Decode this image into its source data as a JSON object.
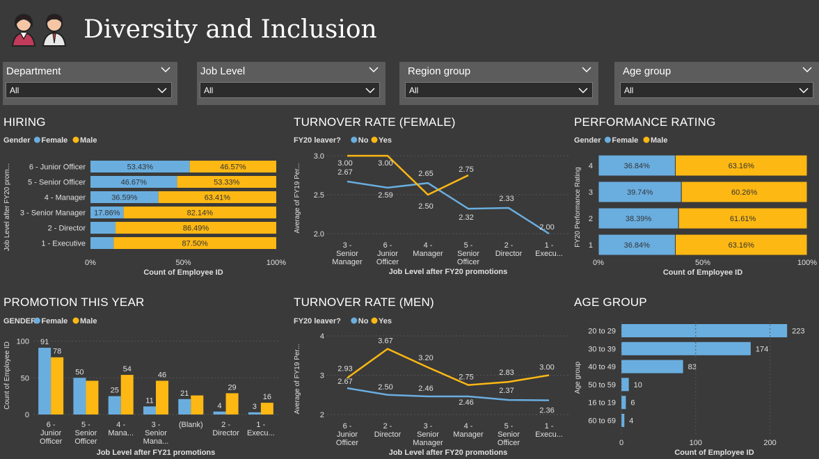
{
  "header": {
    "title": "Diversity and Inclusion"
  },
  "slicers": [
    {
      "label": "Department",
      "value": "All"
    },
    {
      "label": "Job Level",
      "value": "All"
    },
    {
      "label": "Region group",
      "value": "All"
    },
    {
      "label": "Age group",
      "value": "All"
    }
  ],
  "colors": {
    "female": "#6aaee0",
    "male": "#fdb813",
    "no": "#6aaee0",
    "yes": "#fdb813"
  },
  "chart_data": [
    {
      "id": "hiring",
      "type": "bar",
      "title": "HIRING",
      "legend_title": "Gender",
      "orientation": "horizontal-stacked-100",
      "categories": [
        "6 - Junior Officer",
        "5 - Senior Officer",
        "4 - Manager",
        "3 - Senior Manager",
        "2 - Director",
        "1 - Executive"
      ],
      "series": [
        {
          "name": "Female",
          "values": [
            53.43,
            46.67,
            36.59,
            17.86,
            13.51,
            12.5
          ],
          "labels": [
            "53.43%",
            "46.67%",
            "36.59%",
            "17.86%",
            "",
            ""
          ]
        },
        {
          "name": "Male",
          "values": [
            46.57,
            53.33,
            63.41,
            82.14,
            86.49,
            87.5
          ],
          "labels": [
            "46.57%",
            "53.33%",
            "63.41%",
            "82.14%",
            "86.49%",
            "87.50%"
          ]
        }
      ],
      "xlabel": "Count of Employee ID",
      "ylabel": "Job Level after FY20 prom...",
      "xticks": [
        "0%",
        "50%",
        "100%"
      ]
    },
    {
      "id": "turnover_female",
      "type": "line",
      "title": "TURNOVER RATE (FEMALE)",
      "legend_title": "FY20 leaver?",
      "categories": [
        "3 - Senior Manager",
        "6 - Junior Officer",
        "4 - Manager",
        "5 - Senior Officer",
        "2 - Director",
        "1 - Execu..."
      ],
      "series": [
        {
          "name": "No",
          "values": [
            2.67,
            2.59,
            2.65,
            2.32,
            2.33,
            2.0
          ],
          "labels": [
            "2.67",
            "2.59",
            "2.65",
            "2.32",
            "2.33",
            "2.00"
          ]
        },
        {
          "name": "Yes",
          "values": [
            3.0,
            3.0,
            2.5,
            2.75,
            null,
            null
          ],
          "labels": [
            "3.00",
            "3.00",
            "2.50",
            "2.75",
            "",
            ""
          ]
        }
      ],
      "xlabel": "Job Level after FY20 promotions",
      "ylabel": "Average of FY19 Per...",
      "ylim": [
        2.0,
        3.0
      ],
      "yticks": [
        "2.0",
        "2.5",
        "3.0"
      ]
    },
    {
      "id": "performance",
      "type": "bar",
      "title": "PERFORMANCE RATING",
      "legend_title": "Gender",
      "orientation": "horizontal-stacked-100",
      "categories": [
        "4",
        "3",
        "2",
        "1"
      ],
      "series": [
        {
          "name": "Female",
          "values": [
            36.84,
            39.74,
            38.39,
            36.84
          ],
          "labels": [
            "36.84%",
            "39.74%",
            "38.39%",
            "36.84%"
          ]
        },
        {
          "name": "Male",
          "values": [
            63.16,
            60.26,
            61.61,
            63.16
          ],
          "labels": [
            "63.16%",
            "60.26%",
            "61.61%",
            "63.16%"
          ]
        }
      ],
      "xlabel": "Count of Employee ID",
      "ylabel": "FY20 Performance Rating",
      "xticks": [
        "0%",
        "50%",
        "100%"
      ]
    },
    {
      "id": "promotion",
      "type": "bar",
      "title": "PROMOTION THIS YEAR",
      "legend_title": "GENDER",
      "orientation": "vertical-clustered",
      "categories": [
        "6 - Junior Officer",
        "5 - Senior Officer",
        "4 - Mana...",
        "3 - Senior Mana...",
        "(Blank)",
        "2 - Director",
        "1 - Execu..."
      ],
      "series": [
        {
          "name": "Female",
          "values": [
            91,
            50,
            25,
            11,
            21,
            4,
            3
          ],
          "labels": [
            "91",
            "50",
            "25",
            "11",
            "21",
            "4",
            "3"
          ]
        },
        {
          "name": "Male",
          "values": [
            78,
            46,
            54,
            46,
            26,
            29,
            16
          ],
          "labels": [
            "78",
            "",
            "54",
            "46",
            "",
            "29",
            "16"
          ]
        }
      ],
      "xlabel": "Job Level after FY21 promotions",
      "ylabel": "Count of Employee ID",
      "ylim": [
        0,
        110
      ],
      "yticks": [
        "0",
        "50",
        "100"
      ]
    },
    {
      "id": "turnover_men",
      "type": "line",
      "title": "TURNOVER RATE (MEN)",
      "legend_title": "FY20 leaver?",
      "categories": [
        "6 - Junior Officer",
        "2 - Director",
        "3 - Senior Manager",
        "4 - Manager",
        "5 - Senior Officer",
        "1 - Execu..."
      ],
      "series": [
        {
          "name": "No",
          "values": [
            2.67,
            2.5,
            2.46,
            2.46,
            2.37,
            2.36
          ],
          "labels": [
            "2.67",
            "2.50",
            "2.46",
            "2.46",
            "2.37",
            "2.36"
          ]
        },
        {
          "name": "Yes",
          "values": [
            2.93,
            3.67,
            3.2,
            2.75,
            2.83,
            3.0
          ],
          "labels": [
            "2.93",
            "3.67",
            "3.20",
            "2.75",
            "2.83",
            "3.00"
          ]
        }
      ],
      "xlabel": "Job Level after FY20 promotions",
      "ylabel": "Average of FY19 Per...",
      "ylim": [
        2,
        4
      ],
      "yticks": [
        "2",
        "3",
        "4"
      ]
    },
    {
      "id": "age",
      "type": "bar",
      "title": "AGE GROUP",
      "orientation": "horizontal",
      "categories": [
        "20 to 29",
        "30 to 39",
        "40 to 49",
        "50 to 59",
        "16 to 19",
        "60 to 69"
      ],
      "values": [
        223,
        174,
        83,
        10,
        6,
        4
      ],
      "labels": [
        "223",
        "174",
        "83",
        "10",
        "6",
        "4"
      ],
      "xlabel": "Count of Employee ID",
      "ylabel": "Age group",
      "xlim": [
        0,
        250
      ],
      "xticks": [
        "0",
        "100",
        "200"
      ]
    }
  ]
}
